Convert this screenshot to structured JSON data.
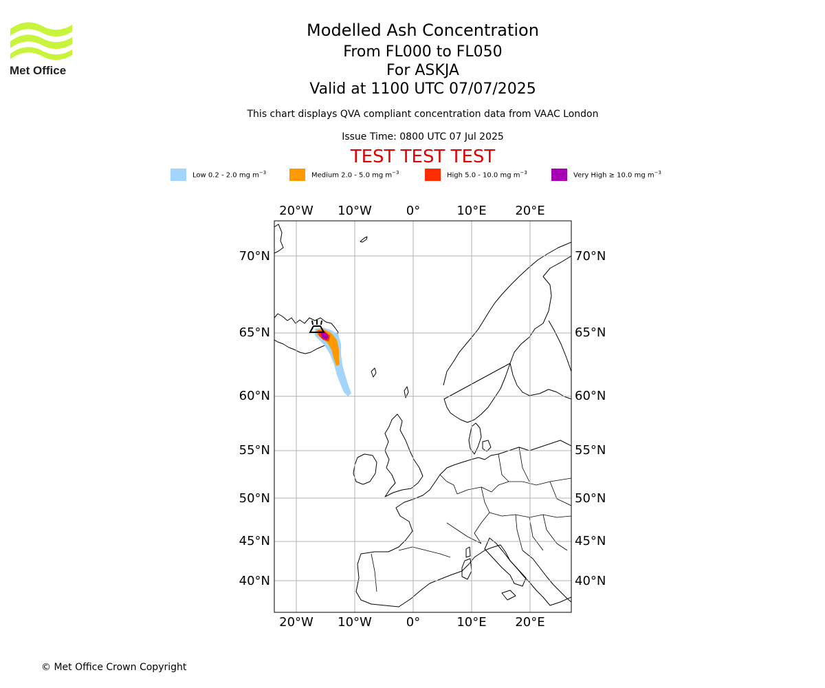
{
  "logo": {
    "text": "Met Office",
    "wave_color": "#c8f53c"
  },
  "header": {
    "title": "Modelled Ash Concentration",
    "levels": "From FL000 to FL050",
    "volcano": "For ASKJA",
    "valid": "Valid at 1100 UTC 07/07/2025",
    "subtitle": "This chart displays QVA compliant concentration data from VAAC London",
    "issue_time": "Issue Time: 0800 UTC 07 Jul 2025",
    "test_banner": "TEST TEST TEST",
    "test_color": "#e00000"
  },
  "legend": [
    {
      "label": "Low 0.2 - 2.0 mg m",
      "exp": "−3",
      "color": "#a3d4fb"
    },
    {
      "label": "Medium 2.0 - 5.0 mg m",
      "exp": "−3",
      "color": "#ff9900"
    },
    {
      "label": "High 5.0 - 10.0 mg m",
      "exp": "−3",
      "color": "#ff2d00"
    },
    {
      "label": "Very High  ≥  10.0 mg m",
      "exp": "−3",
      "color": "#a600b4"
    }
  ],
  "map": {
    "lon_ticks": [
      "20°W",
      "10°W",
      "0°",
      "10°E",
      "20°E"
    ],
    "lat_ticks": [
      "70°N",
      "65°N",
      "60°N",
      "55°N",
      "50°N",
      "45°N",
      "40°N"
    ],
    "extent": {
      "lon": [
        -24,
        27
      ],
      "lat": [
        37,
        72
      ]
    },
    "grid": true,
    "volcano_icon": "volcano-symbol-icon"
  },
  "footer": {
    "copyright": "© Met Office Crown Copyright"
  }
}
